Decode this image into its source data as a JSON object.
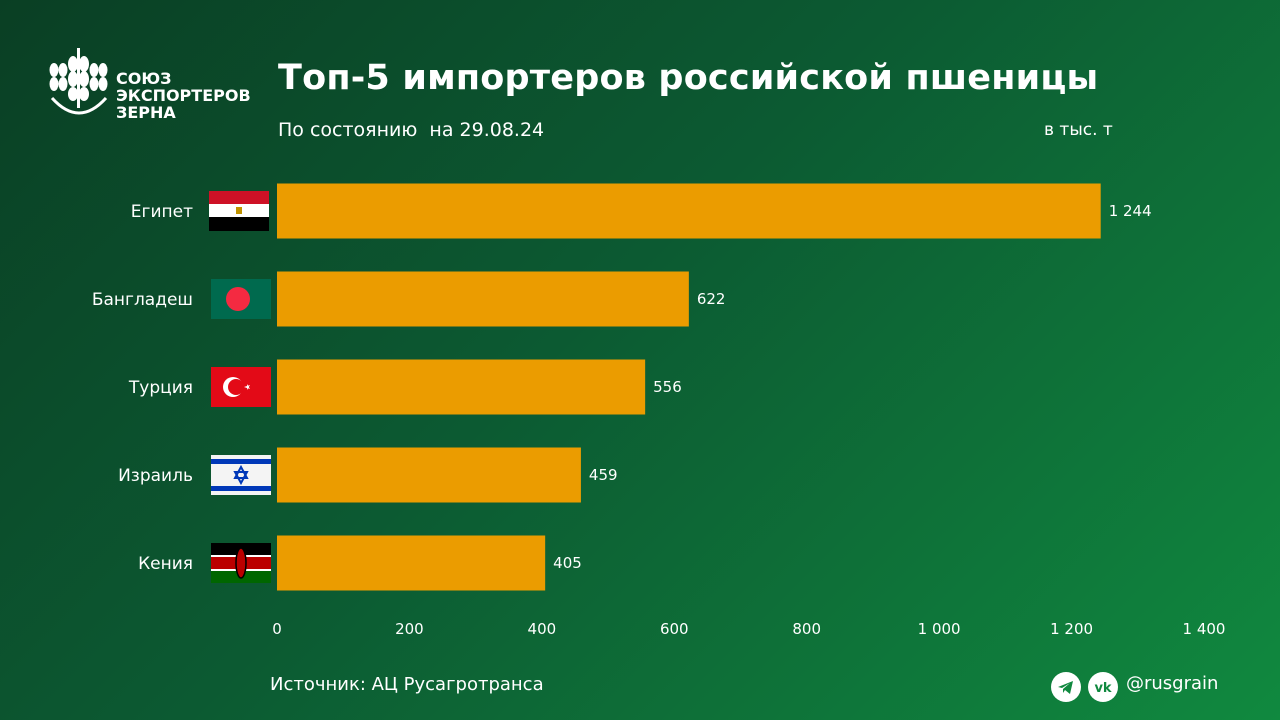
{
  "logo": {
    "lines": [
      "СОЮЗ",
      "ЭКСПОРТЕРОВ",
      "ЗЕРНА"
    ]
  },
  "header": {
    "title": "Топ-5 импортеров российской пшеницы",
    "subtitle": "По состоянию  на 29.08.24",
    "unit": "в тыс. т"
  },
  "chart_data": {
    "type": "bar",
    "orientation": "horizontal",
    "title": "Топ-5 импортеров российской пшеницы",
    "subtitle": "По состоянию  на 29.08.24",
    "unit": "в тыс. т",
    "categories": [
      "Египет",
      "Бангладеш",
      "Турция",
      "Израиль",
      "Кения"
    ],
    "values": [
      1244,
      622,
      556,
      459,
      405
    ],
    "value_labels": [
      "1 244",
      "622",
      "556",
      "459",
      "405"
    ],
    "flags": [
      "egypt-flag",
      "bangladesh-flag",
      "turkey-flag",
      "israel-flag",
      "kenya-flag"
    ],
    "xlim": [
      0,
      1400
    ],
    "xticks": [
      0,
      200,
      400,
      600,
      800,
      1000,
      1200,
      1400
    ],
    "xtick_labels": [
      "0",
      "200",
      "400",
      "600",
      "800",
      "1 000",
      "1 200",
      "1 400"
    ],
    "grid": false,
    "bar_color": "#eb9c00"
  },
  "footer": {
    "source": "Источник: АЦ Русагротранса",
    "handle": "@rusgrain",
    "icons": [
      "telegram-icon",
      "vk-icon"
    ]
  }
}
